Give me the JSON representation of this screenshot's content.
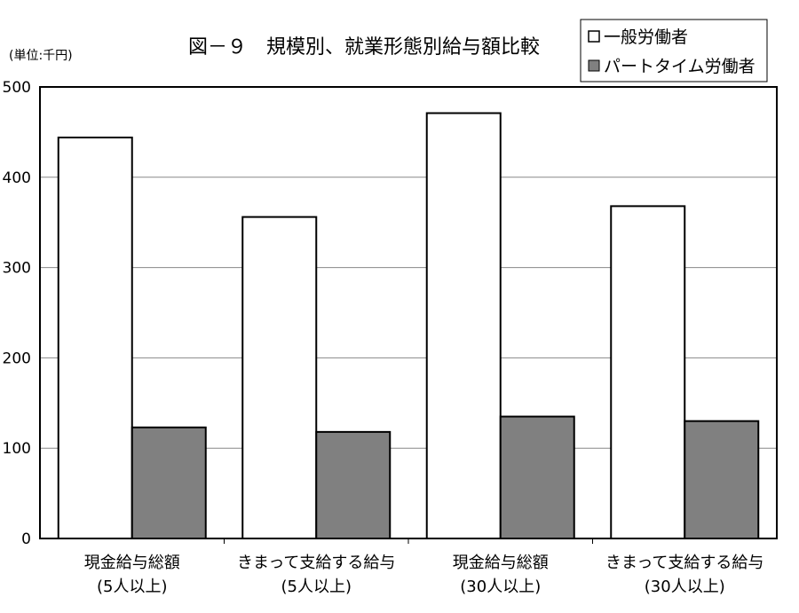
{
  "chart_data": {
    "type": "bar",
    "title": "図－９　規模別、就業形態別給与額比較",
    "unit_label": "(単位:千円)",
    "categories": [
      [
        "現金給与総額",
        "(5人以上)"
      ],
      [
        "きまって支給する給与",
        "(5人以上)"
      ],
      [
        "現金給与総額",
        "(30人以上)"
      ],
      [
        "きまって支給する給与",
        "(30人以上)"
      ]
    ],
    "series": [
      {
        "name": "一般労働者",
        "values": [
          444,
          356,
          471,
          368
        ],
        "color": "#ffffff"
      },
      {
        "name": "パートタイム労働者",
        "values": [
          123,
          118,
          135,
          130
        ],
        "color": "#808080"
      }
    ],
    "ylim": [
      0,
      500
    ],
    "yticks": [
      0,
      100,
      200,
      300,
      400,
      500
    ],
    "grid": true,
    "legend_position": "top-right"
  }
}
